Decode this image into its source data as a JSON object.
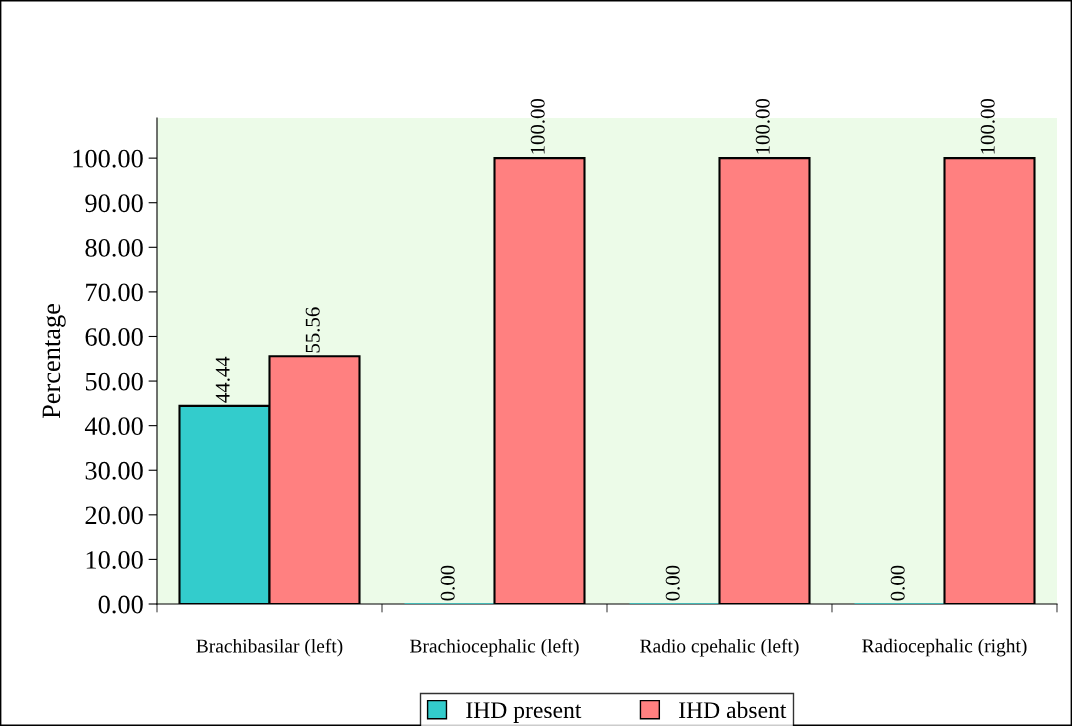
{
  "chart_data": {
    "type": "bar",
    "ylabel": "Percentage",
    "categories": [
      "Brachibasilar (left)",
      "Brachiocephalic (left)",
      "Radio cpehalic (left)",
      "Radiocephalic (right)"
    ],
    "series": [
      {
        "name": "IHD present",
        "color": "#33cccc",
        "values": [
          44.44,
          0,
          0,
          0
        ],
        "value_labels": [
          "44.44",
          "0.00",
          "0.00",
          "0.00"
        ]
      },
      {
        "name": "IHD absent",
        "color": "#ff8080",
        "values": [
          55.56,
          100,
          100,
          100
        ],
        "value_labels": [
          "55.56",
          "100.00",
          "100.00",
          "100.00"
        ]
      }
    ],
    "ylim": [
      0,
      109
    ],
    "yticks": [
      {
        "value": 0,
        "label": "0.00"
      },
      {
        "value": 10,
        "label": "10.00"
      },
      {
        "value": 20,
        "label": "20.00"
      },
      {
        "value": 30,
        "label": "30.00"
      },
      {
        "value": 40,
        "label": "40.00"
      },
      {
        "value": 50,
        "label": "50.00"
      },
      {
        "value": 60,
        "label": "60.00"
      },
      {
        "value": 70,
        "label": "70.00"
      },
      {
        "value": 80,
        "label": "80.00"
      },
      {
        "value": 90,
        "label": "90.00"
      },
      {
        "value": 100,
        "label": "100.00"
      }
    ],
    "grid": false,
    "legend": "bottom"
  }
}
